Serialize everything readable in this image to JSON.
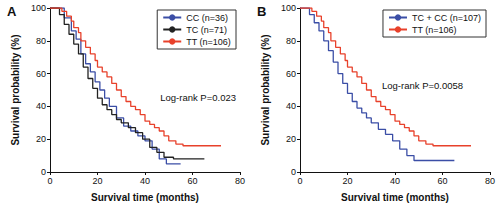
{
  "chart_data": [
    {
      "type": "line",
      "title": "A",
      "annotation": "Log-rank P=0.023",
      "x_label": "Survival time (months)",
      "y_label": "Survival probability (%)",
      "xlim": [
        0,
        80
      ],
      "xticks": [
        0,
        20,
        40,
        60,
        80
      ],
      "ylim": [
        0,
        100
      ],
      "yticks": [
        0,
        20,
        40,
        60,
        80,
        100
      ],
      "grid": false,
      "legend": "upper right",
      "line_style": "step",
      "series": [
        {
          "name": "CC (n=36)",
          "color": "#3b4ea6",
          "x": [
            0,
            6,
            9,
            11,
            13,
            15,
            17,
            19,
            21,
            23,
            25,
            28,
            31,
            34,
            37,
            40,
            43,
            46,
            49,
            55
          ],
          "values": [
            100,
            94,
            86,
            81,
            72,
            66,
            61,
            55,
            50,
            45,
            40,
            33,
            28,
            25,
            22,
            19,
            14,
            8,
            5,
            5
          ]
        },
        {
          "name": "TC (n=71)",
          "color": "#222222",
          "x": [
            0,
            4,
            6,
            8,
            10,
            12,
            14,
            16,
            18,
            20,
            22,
            24,
            26,
            28,
            30,
            33,
            36,
            39,
            42,
            45,
            48,
            52,
            65
          ],
          "values": [
            100,
            96,
            90,
            84,
            78,
            72,
            64,
            57,
            51,
            45,
            41,
            38,
            35,
            32,
            30,
            27,
            24,
            20,
            15,
            12,
            9,
            8,
            8
          ]
        },
        {
          "name": "TT (n=106)",
          "color": "#e8412b",
          "x": [
            0,
            5,
            7,
            9,
            10,
            12,
            13,
            15,
            17,
            19,
            20,
            22,
            24,
            26,
            28,
            30,
            32,
            34,
            36,
            38,
            40,
            42,
            44,
            46,
            48,
            50,
            53,
            56,
            72
          ],
          "values": [
            100,
            98,
            95,
            92,
            88,
            85,
            80,
            76,
            72,
            68,
            64,
            61,
            58,
            54,
            50,
            46,
            43,
            40,
            38,
            35,
            31,
            29,
            27,
            25,
            22,
            19,
            17,
            16,
            16
          ]
        }
      ]
    },
    {
      "type": "line",
      "title": "B",
      "annotation": "Log-rank P=0.0058",
      "x_label": "Survival time (months)",
      "y_label": "Survival probability (%)",
      "xlim": [
        0,
        80
      ],
      "xticks": [
        0,
        20,
        40,
        60,
        80
      ],
      "ylim": [
        0,
        100
      ],
      "yticks": [
        0,
        20,
        40,
        60,
        80,
        100
      ],
      "grid": false,
      "legend": "upper right",
      "line_style": "step",
      "series": [
        {
          "name": "TC + CC (n=107)",
          "color": "#3b4ea6",
          "x": [
            0,
            4,
            6,
            8,
            10,
            12,
            14,
            16,
            18,
            20,
            22,
            24,
            26,
            28,
            30,
            33,
            36,
            39,
            42,
            45,
            48,
            52,
            65
          ],
          "values": [
            100,
            96,
            91,
            86,
            80,
            74,
            67,
            60,
            54,
            48,
            43,
            39,
            36,
            33,
            30,
            26,
            23,
            19,
            14,
            10,
            7,
            7,
            7
          ]
        },
        {
          "name": "TT (n=106)",
          "color": "#e8412b",
          "x": [
            0,
            5,
            7,
            9,
            10,
            12,
            13,
            15,
            17,
            19,
            20,
            22,
            24,
            26,
            28,
            30,
            32,
            34,
            36,
            38,
            40,
            42,
            44,
            46,
            48,
            50,
            53,
            56,
            72
          ],
          "values": [
            100,
            98,
            95,
            92,
            88,
            85,
            80,
            76,
            72,
            68,
            64,
            61,
            58,
            54,
            50,
            46,
            43,
            40,
            38,
            35,
            31,
            29,
            27,
            25,
            22,
            19,
            17,
            16,
            16
          ]
        }
      ]
    }
  ]
}
